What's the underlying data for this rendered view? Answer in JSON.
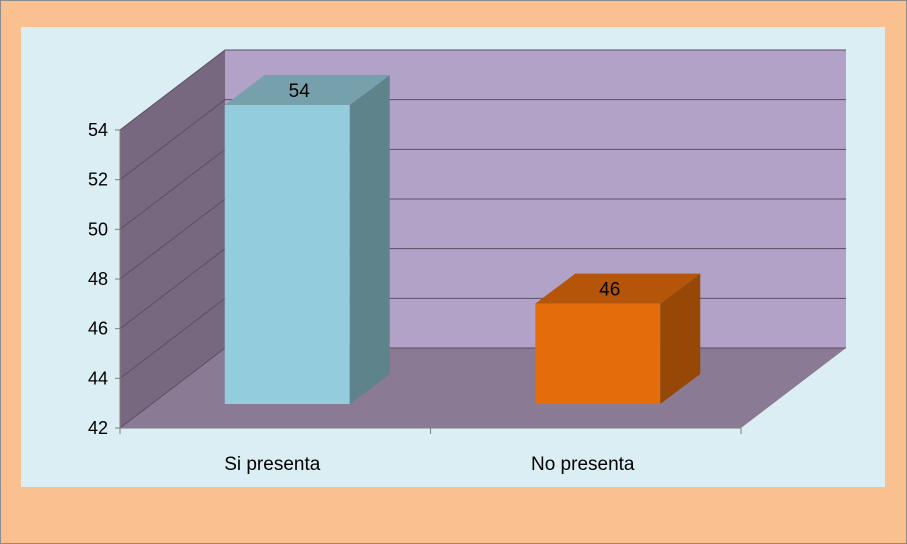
{
  "chart_data": {
    "type": "bar",
    "style": "3d-column",
    "categories": [
      "Si presenta",
      "No presenta"
    ],
    "values": [
      54,
      46
    ],
    "data_labels": [
      "54",
      "46"
    ],
    "title": "",
    "xlabel": "",
    "ylabel": "",
    "ylim": [
      42,
      54
    ],
    "yticks": [
      "42",
      "44",
      "46",
      "48",
      "50",
      "52",
      "54"
    ],
    "grid": true,
    "legend": "none",
    "colors": {
      "bar_front": [
        "#93CDDD",
        "#E46C0A"
      ],
      "bar_side": [
        "#5F838A",
        "#974806"
      ],
      "bar_top": [
        "#76A0AB",
        "#B45509"
      ],
      "back_wall": "#B3A2C7",
      "side_wall": "#77687F",
      "floor": "#8A7A94",
      "plot_bg": "#DBEEF3",
      "outer_bg": "#FAC090"
    }
  }
}
